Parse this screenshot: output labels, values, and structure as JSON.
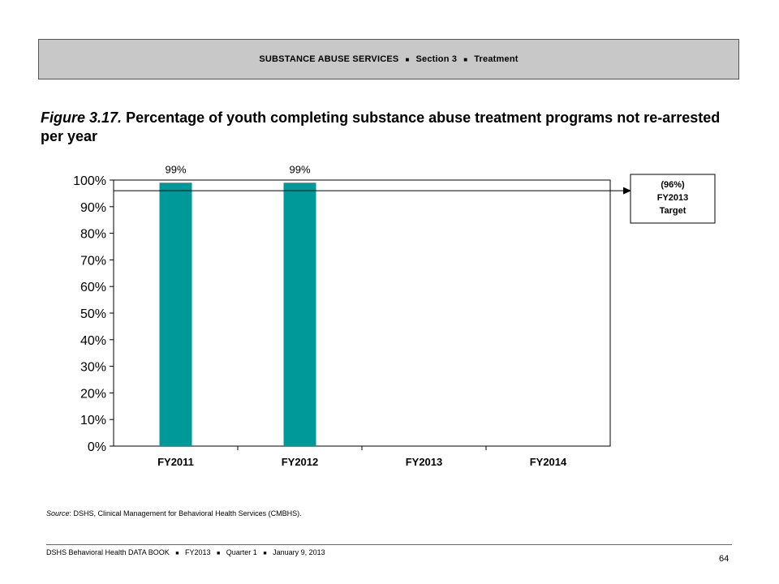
{
  "header": {
    "parts": [
      "SUBSTANCE ABUSE SERVICES",
      "Section 3",
      "Treatment"
    ]
  },
  "title": {
    "figure_label": "Figure 3.17.",
    "text": "Percentage of youth completing substance abuse treatment programs not re-arrested per year"
  },
  "chart_data": {
    "type": "bar",
    "categories": [
      "FY2011",
      "FY2012",
      "FY2013",
      "FY2014"
    ],
    "values": [
      99,
      99,
      null,
      null
    ],
    "data_labels": [
      "99%",
      "99%",
      "",
      ""
    ],
    "ylim": [
      0,
      100
    ],
    "yticks": [
      "0%",
      "10%",
      "20%",
      "30%",
      "40%",
      "50%",
      "60%",
      "70%",
      "80%",
      "90%",
      "100%"
    ],
    "bar_color": "#009999",
    "target": {
      "value": 96,
      "label_lines": [
        "(96%)",
        "FY2013",
        "Target"
      ]
    }
  },
  "source": {
    "label": "Source",
    "text": ": DSHS, Clinical Management for Behavioral Health Services (CMBHS)."
  },
  "footer": {
    "parts": [
      "DSHS Behavioral Health DATA BOOK",
      "FY2013",
      "Quarter 1",
      "January  9, 2013"
    ],
    "page_number": "64"
  }
}
